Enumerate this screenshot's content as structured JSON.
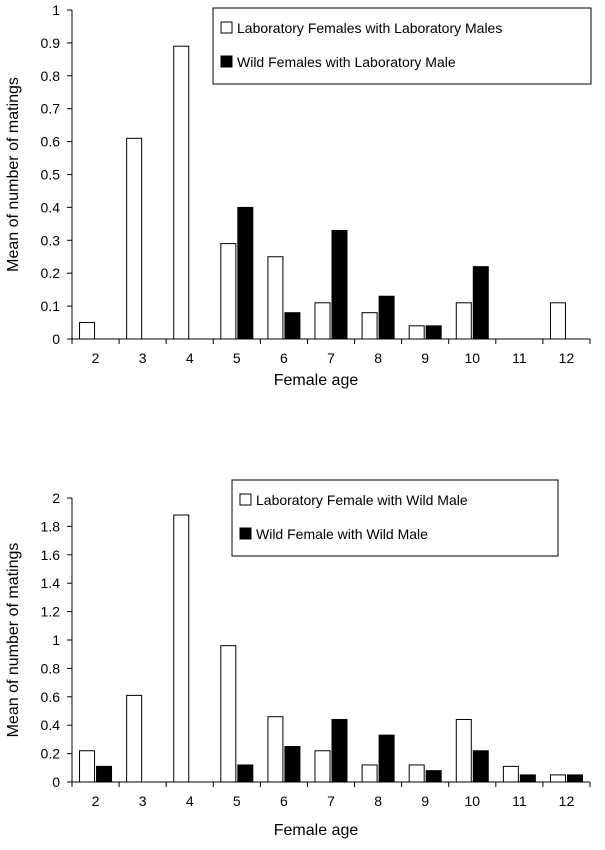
{
  "chart_data": [
    {
      "type": "bar",
      "title": "",
      "xlabel": "Female age",
      "ylabel": "Mean of number of matings",
      "categories": [
        "2",
        "3",
        "4",
        "5",
        "6",
        "7",
        "8",
        "9",
        "10",
        "11",
        "12"
      ],
      "ylim": [
        0,
        1
      ],
      "yticks": [
        "0",
        "0.1",
        "0.2",
        "0.3",
        "0.4",
        "0.5",
        "0.6",
        "0.7",
        "0.8",
        "0.9",
        "1"
      ],
      "grid": false,
      "legend_position": "top-right",
      "series": [
        {
          "name": "Laboratory Females with Laboratory Males",
          "fill": "#ffffff",
          "values": [
            0.05,
            0.61,
            0.89,
            0.29,
            0.25,
            0.11,
            0.08,
            0.04,
            0.11,
            0,
            0.11
          ]
        },
        {
          "name": "Wild Females with Laboratory Male",
          "fill": "#000000",
          "values": [
            0,
            0,
            0,
            0.4,
            0.08,
            0.33,
            0.13,
            0.04,
            0.22,
            0,
            0
          ]
        }
      ]
    },
    {
      "type": "bar",
      "title": "",
      "xlabel": "Female age",
      "ylabel": "Mean of number of matings",
      "categories": [
        "2",
        "3",
        "4",
        "5",
        "6",
        "7",
        "8",
        "9",
        "10",
        "11",
        "12"
      ],
      "ylim": [
        0,
        2
      ],
      "yticks": [
        "0",
        "0.2",
        "0.4",
        "0.6",
        "0.8",
        "1",
        "1.2",
        "1.4",
        "1.6",
        "1.8",
        "2"
      ],
      "grid": false,
      "legend_position": "top-right",
      "series": [
        {
          "name": "Laboratory Female with Wild Male",
          "fill": "#ffffff",
          "values": [
            0.22,
            0.61,
            1.88,
            0.96,
            0.46,
            0.22,
            0.12,
            0.12,
            0.44,
            0.11,
            0.05
          ]
        },
        {
          "name": "Wild Female with Wild  Male",
          "fill": "#000000",
          "values": [
            0.11,
            0,
            0,
            0.12,
            0.25,
            0.44,
            0.33,
            0.08,
            0.22,
            0.05,
            0.05
          ]
        }
      ]
    }
  ]
}
